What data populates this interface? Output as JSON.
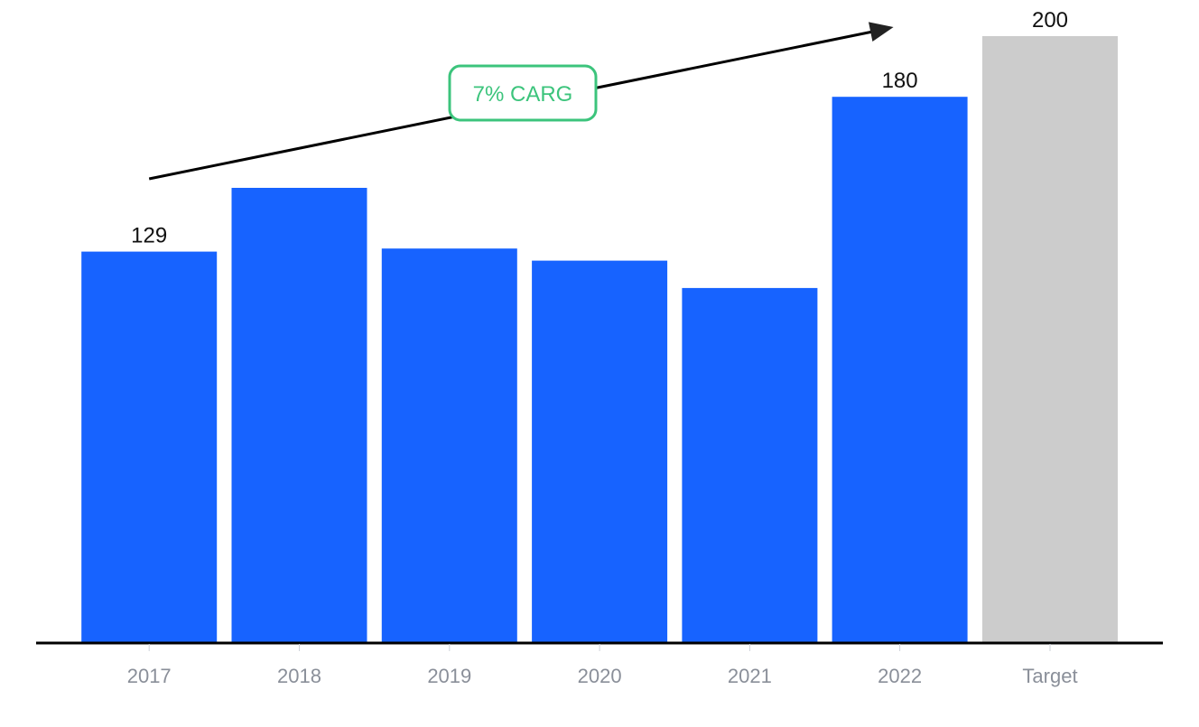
{
  "chart_data": {
    "type": "bar",
    "categories": [
      "2017",
      "2018",
      "2019",
      "2020",
      "2021",
      "2022",
      "Target"
    ],
    "values": [
      129,
      150,
      130,
      126,
      117,
      180,
      200
    ],
    "data_labels": [
      {
        "category": "2017",
        "text": "129"
      },
      {
        "category": "2022",
        "text": "180"
      },
      {
        "category": "Target",
        "text": "200"
      }
    ],
    "annotation": {
      "text": "7% CARG",
      "arrow_from": "2017",
      "arrow_to": "2022"
    },
    "title": "",
    "xlabel": "",
    "ylabel": "",
    "ylim": [
      0,
      200
    ],
    "grid": false,
    "legend": "none",
    "colors": {
      "bar": "#1763ff",
      "target_bar": "#cccccc",
      "axis": "#000000",
      "arrow": "#000000",
      "annotation_border": "#3cc47c",
      "annotation_text": "#3cc47c",
      "tick_label": "#8a8f99"
    }
  }
}
